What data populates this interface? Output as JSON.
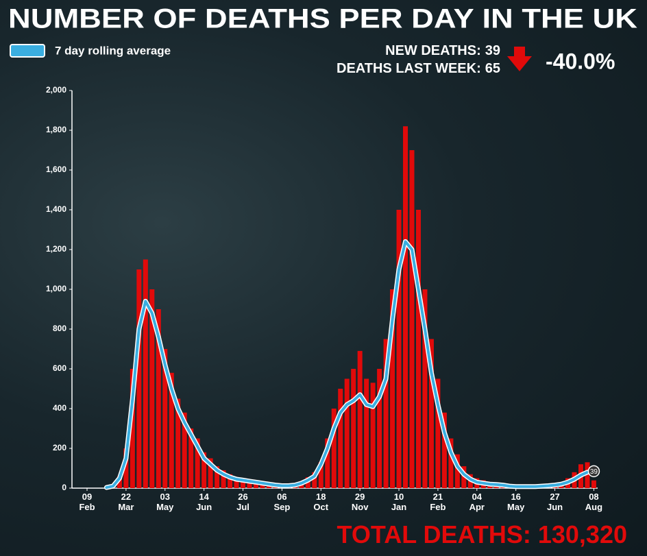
{
  "chart_data": {
    "type": "bar",
    "title": "NUMBER OF DEATHS PER DAY IN THE UK",
    "stats": [
      {
        "label": "NEW DEATHS:",
        "value": 39
      },
      {
        "label": "DEATHS LAST WEEK:",
        "value": 65
      }
    ],
    "change": "-40.0%",
    "total": {
      "label": "TOTAL DEATHS:",
      "value": 130320,
      "value_label": "130,320"
    },
    "categories": [
      "09 Feb",
      null,
      null,
      null,
      null,
      null,
      "22 Mar",
      null,
      null,
      null,
      null,
      null,
      "03 May",
      null,
      null,
      null,
      null,
      null,
      "14 Jun",
      null,
      null,
      null,
      null,
      null,
      "26 Jul",
      null,
      null,
      null,
      null,
      null,
      "06 Sep",
      null,
      null,
      null,
      null,
      null,
      "18 Oct",
      null,
      null,
      null,
      null,
      null,
      "29 Nov",
      null,
      null,
      null,
      null,
      null,
      "10 Jan",
      null,
      null,
      null,
      null,
      null,
      "21 Feb",
      null,
      null,
      null,
      null,
      null,
      "04 Apr",
      null,
      null,
      null,
      null,
      null,
      "16 May",
      null,
      null,
      null,
      null,
      null,
      "27 Jun",
      null,
      null,
      null,
      null,
      null,
      "08 Aug"
    ],
    "values": [
      null,
      null,
      null,
      2,
      15,
      60,
      200,
      600,
      1100,
      1150,
      1000,
      900,
      700,
      580,
      450,
      380,
      300,
      250,
      180,
      150,
      110,
      90,
      70,
      55,
      50,
      40,
      35,
      30,
      25,
      20,
      15,
      20,
      25,
      35,
      55,
      80,
      130,
      250,
      400,
      500,
      550,
      600,
      690,
      550,
      530,
      600,
      750,
      1000,
      1400,
      1820,
      1700,
      1400,
      1000,
      750,
      550,
      380,
      250,
      170,
      110,
      70,
      50,
      40,
      30,
      25,
      20,
      15,
      10,
      10,
      12,
      12,
      15,
      18,
      25,
      30,
      50,
      80,
      120,
      130,
      39
    ],
    "color": "#e10a0a",
    "series": [
      {
        "name": "7 day rolling average",
        "color": "#3aaee0",
        "values": [
          null,
          null,
          null,
          3,
          10,
          50,
          150,
          450,
          800,
          940,
          880,
          760,
          620,
          500,
          400,
          330,
          270,
          210,
          150,
          120,
          90,
          70,
          55,
          45,
          40,
          35,
          30,
          25,
          20,
          15,
          12,
          12,
          15,
          25,
          40,
          60,
          120,
          200,
          300,
          380,
          420,
          440,
          470,
          420,
          410,
          460,
          550,
          850,
          1100,
          1240,
          1200,
          1000,
          800,
          580,
          420,
          280,
          180,
          110,
          70,
          45,
          30,
          25,
          20,
          18,
          15,
          10,
          8,
          8,
          8,
          8,
          10,
          12,
          15,
          20,
          30,
          45,
          65,
          80,
          85
        ]
      }
    ],
    "ylim": [
      0,
      2000
    ],
    "yticks": [
      0,
      200,
      400,
      600,
      800,
      {
        "value": 1000,
        "label": "1,000"
      },
      {
        "value": 1200,
        "label": "1,200"
      },
      {
        "value": 1400,
        "label": "1,400"
      },
      {
        "value": 1600,
        "label": "1,600"
      },
      {
        "value": 1800,
        "label": "1,800"
      },
      {
        "value": 2000,
        "label": "2,000"
      }
    ],
    "grid": false,
    "legend": "top-left"
  }
}
